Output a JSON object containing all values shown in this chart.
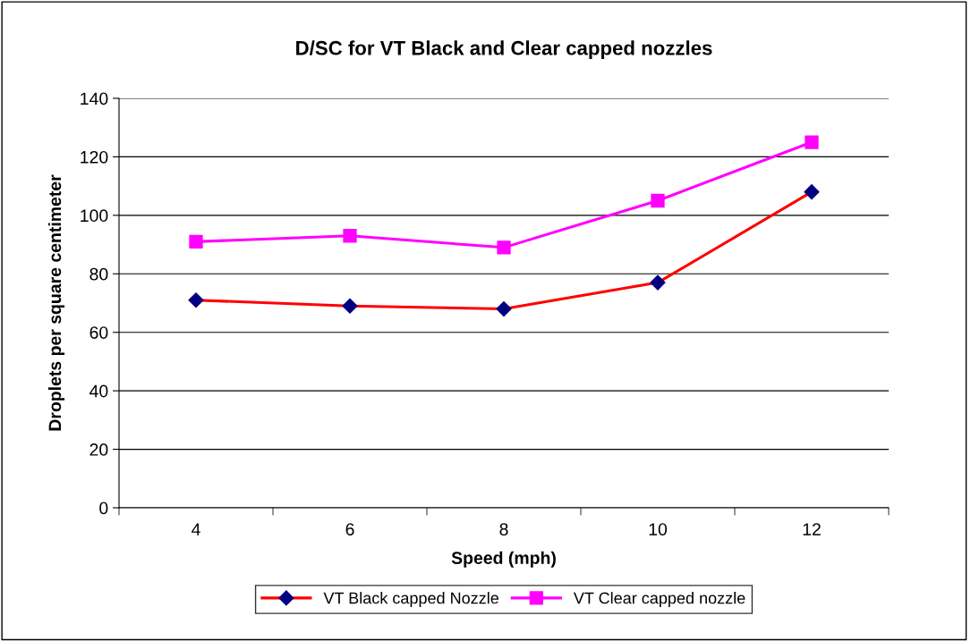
{
  "chart_data": {
    "type": "line",
    "title": "D/SC for VT Black and Clear capped nozzles",
    "xlabel": "Speed (mph)",
    "ylabel": "Droplets per square centimeter",
    "categories": [
      "4",
      "6",
      "8",
      "10",
      "12"
    ],
    "series": [
      {
        "name": "VT Black capped Nozzle",
        "color": "#ff0000",
        "colors": [
          "#000080",
          "#000080",
          "#000080",
          "#000080",
          "#000080"
        ],
        "marker": "diamond",
        "values": [
          71,
          69,
          68,
          77,
          108
        ]
      },
      {
        "name": "VT Clear capped nozzle",
        "color": "#ff00ff",
        "marker": "square",
        "values": [
          91,
          93,
          89,
          105,
          125
        ]
      }
    ],
    "ylim": [
      0,
      140
    ],
    "yticks": [
      0,
      20,
      40,
      60,
      80,
      100,
      120,
      140
    ],
    "grid": "y",
    "legend": "bottom",
    "line_style": "solid"
  }
}
